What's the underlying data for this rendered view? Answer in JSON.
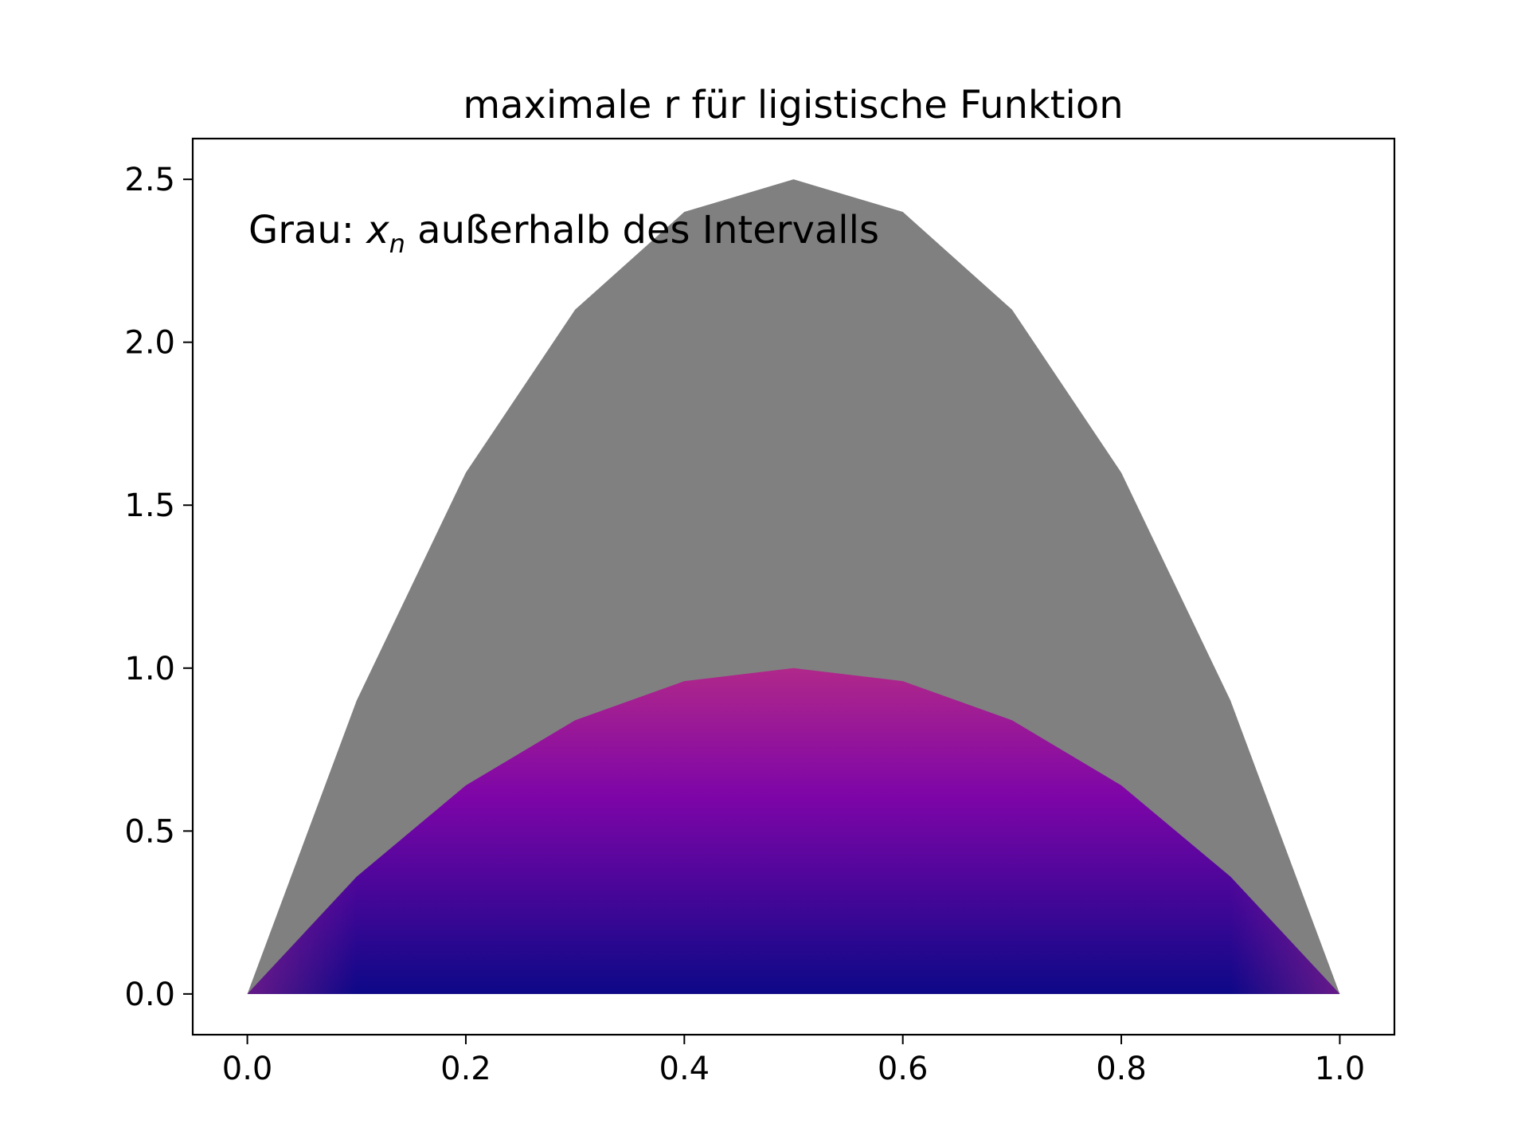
{
  "chart_data": {
    "type": "area",
    "title": "maximale r für ligistische Funktion",
    "xlabel": "",
    "ylabel": "",
    "xlim": [
      -0.05,
      1.05
    ],
    "ylim": [
      -0.125,
      2.625
    ],
    "x_ticks": [
      "0.0",
      "0.2",
      "0.4",
      "0.6",
      "0.8",
      "1.0"
    ],
    "y_ticks": [
      "0.0",
      "0.5",
      "1.0",
      "1.5",
      "2.0",
      "2.5"
    ],
    "annotation": {
      "prefix": "Grau: ",
      "var": "x",
      "sub": "n",
      "suffix": " außerhalb des Intervalls"
    },
    "series": [
      {
        "fill": "gray",
        "x": [
          0.0,
          0.1,
          0.2,
          0.3,
          0.4,
          0.5,
          0.6,
          0.7,
          0.8,
          0.9,
          1.0
        ],
        "y": [
          0.0,
          0.9,
          1.6,
          2.1,
          2.4,
          2.5,
          2.4,
          2.1,
          1.6,
          0.9,
          0.0
        ]
      },
      {
        "fill": "plasma-gradient",
        "x": [
          0.0,
          0.1,
          0.2,
          0.3,
          0.4,
          0.5,
          0.6,
          0.7,
          0.8,
          0.9,
          1.0
        ],
        "y": [
          0.0,
          0.36,
          0.64,
          0.84,
          0.96,
          1.0,
          0.96,
          0.84,
          0.64,
          0.36,
          0.0
        ]
      }
    ],
    "colors": {
      "gray_fill": "#808080",
      "gradient_top": "#b0288a",
      "gradient_mid": "#7d05a8",
      "gradient_bottom": "#0d0887"
    },
    "grid": false,
    "legend": "none"
  }
}
